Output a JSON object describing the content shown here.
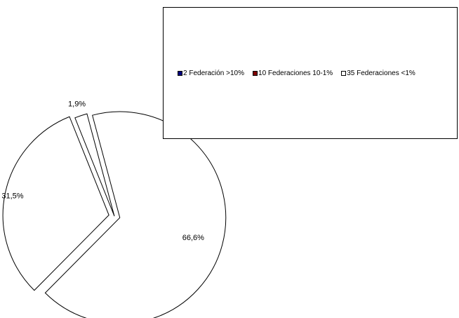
{
  "colors": {
    "slice_fill": "#ffffff",
    "slice_stroke": "#000000",
    "swatch_1": "#000080",
    "swatch_2": "#800000",
    "swatch_3": "#ffffff"
  },
  "chart_data": {
    "type": "pie",
    "title": "",
    "legend_position": "top-right",
    "categories": [
      "2 Federación >10%",
      "10 Federaciones 10-1%",
      "35 Federaciones <1%"
    ],
    "values": [
      66.6,
      31.5,
      1.9
    ],
    "data_labels": [
      "66,6%",
      "31,5%",
      "1,9%"
    ],
    "exploded": [
      true,
      true,
      false
    ]
  }
}
